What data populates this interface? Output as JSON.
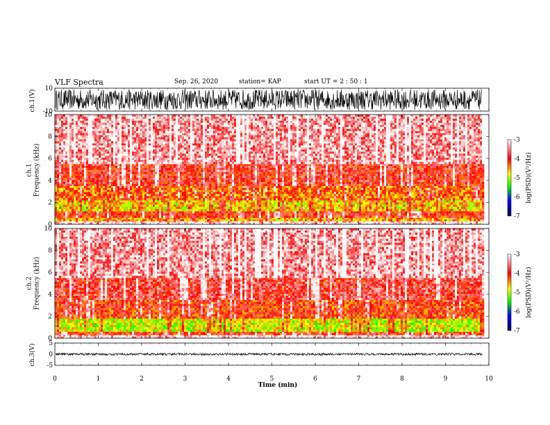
{
  "header": {
    "title": "VLF Spectra",
    "date": "Sep. 26, 2020",
    "station": "station= KAP",
    "start": "start  UT =   2  : 50 : 1"
  },
  "chart_data": [
    {
      "type": "line",
      "panel": "ch1-waveform",
      "ylabel": "ch.1(V)",
      "ylim": [
        -10,
        10
      ],
      "yticks": [
        "10",
        "-10"
      ],
      "x_range_min": [
        0,
        9.85
      ],
      "amplitude_range": [
        -9,
        9
      ],
      "color": "#000000"
    },
    {
      "type": "heatmap",
      "panel": "ch1-spectrogram",
      "ylabel": "ch.1\nFrequency  (kHz)",
      "ylim": [
        0,
        10
      ],
      "yticks": [
        "0",
        "2",
        "4",
        "6",
        "8",
        "10"
      ],
      "x_range_min": [
        0,
        9.85
      ],
      "bands_khz": [
        {
          "from": 0.0,
          "to": 0.3,
          "level": -3.2
        },
        {
          "from": 0.3,
          "to": 0.6,
          "level": -4.6
        },
        {
          "from": 0.6,
          "to": 1.2,
          "level": -4.0
        },
        {
          "from": 1.2,
          "to": 2.2,
          "level": -4.7
        },
        {
          "from": 2.2,
          "to": 3.5,
          "level": -4.3
        },
        {
          "from": 3.5,
          "to": 5.5,
          "level": -3.9
        },
        {
          "from": 5.5,
          "to": 10.0,
          "level": -3.4
        }
      ],
      "colorbar": {
        "label": "log(PSD)(V²/Hz)",
        "range": [
          -7,
          -3
        ],
        "ticks": [
          "-3",
          "-4",
          "-5",
          "-6",
          "-7"
        ]
      }
    },
    {
      "type": "heatmap",
      "panel": "ch2-spectrogram",
      "ylabel": "ch.2\nFrequency  (kHz)",
      "ylim": [
        0,
        10
      ],
      "yticks": [
        "0",
        "2",
        "4",
        "6",
        "8",
        "10"
      ],
      "x_range_min": [
        0,
        9.85
      ],
      "bands_khz": [
        {
          "from": 0.0,
          "to": 0.3,
          "level": -3.2
        },
        {
          "from": 0.3,
          "to": 0.6,
          "level": -4.0
        },
        {
          "from": 0.6,
          "to": 1.8,
          "level": -4.9
        },
        {
          "from": 1.8,
          "to": 3.5,
          "level": -4.1
        },
        {
          "from": 3.5,
          "to": 5.5,
          "level": -3.8
        },
        {
          "from": 5.5,
          "to": 10.0,
          "level": -3.4
        }
      ],
      "colorbar": {
        "label": "log(PSD)(V²/Hz)",
        "range": [
          -7,
          -3
        ],
        "ticks": [
          "-3",
          "-4",
          "-5",
          "-6",
          "-7"
        ]
      }
    },
    {
      "type": "line",
      "panel": "ch3-waveform",
      "ylabel": "ch.3(V)",
      "ylim": [
        -5,
        5
      ],
      "yticks": [
        "5",
        "0",
        "-5"
      ],
      "x_range_min": [
        0,
        9.85
      ],
      "amplitude_range": [
        -0.5,
        0.5
      ],
      "color": "#000000"
    }
  ],
  "xaxis": {
    "label": "Time  (min)",
    "ticks": [
      "0",
      "1",
      "2",
      "3",
      "4",
      "5",
      "6",
      "7",
      "8",
      "9",
      "10"
    ],
    "xlim": [
      0,
      10
    ]
  },
  "colors": {
    "white": "#ffffff",
    "red": "#ff0000",
    "yellow": "#ffff00",
    "green": "#00ff00",
    "blue": "#0000ff",
    "navy": "#000080"
  }
}
